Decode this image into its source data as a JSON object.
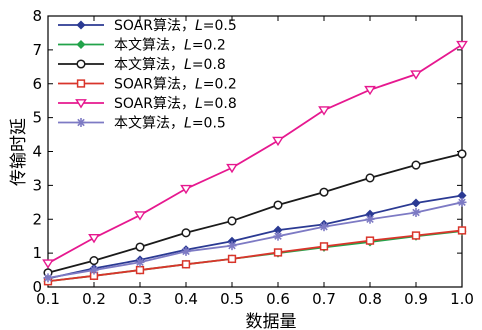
{
  "chart_data": {
    "type": "line",
    "xlabel": "数据量",
    "ylabel": "传输时延",
    "xlim": [
      0.1,
      1.0
    ],
    "ylim": [
      0,
      8
    ],
    "xticks": [
      "0.1",
      "0.2",
      "0.3",
      "0.4",
      "0.5",
      "0.6",
      "0.7",
      "0.8",
      "0.9",
      "1.0"
    ],
    "yticks": [
      "0",
      "1",
      "2",
      "3",
      "4",
      "5",
      "6",
      "7",
      "8"
    ],
    "legend_position": "top-left",
    "grid": false,
    "x": [
      0.1,
      0.2,
      0.3,
      0.4,
      0.5,
      0.6,
      0.7,
      0.8,
      0.9,
      1.0
    ],
    "series": [
      {
        "name": "SOAR算法，L=0.5",
        "label_main": "SOAR算法，",
        "label_var": "L",
        "label_val": "=0.5",
        "color": "#2b3a93",
        "marker": "diamond-filled",
        "values": [
          0.25,
          0.55,
          0.8,
          1.1,
          1.35,
          1.68,
          1.85,
          2.15,
          2.48,
          2.7
        ]
      },
      {
        "name": "本文算法，L=0.2",
        "label_main": "本文算法，",
        "label_var": "L",
        "label_val": "=0.2",
        "color": "#22a34a",
        "marker": "diamond-filled",
        "values": [
          0.17,
          0.33,
          0.5,
          0.67,
          0.83,
          1.0,
          1.17,
          1.33,
          1.5,
          1.65
        ]
      },
      {
        "name": "本文算法，L=0.8",
        "label_main": "本文算法，",
        "label_var": "L",
        "label_val": "=0.8",
        "color": "#1a1a1a",
        "marker": "circle-open",
        "values": [
          0.42,
          0.78,
          1.18,
          1.6,
          1.95,
          2.42,
          2.8,
          3.22,
          3.6,
          3.93
        ]
      },
      {
        "name": "SOAR算法，L=0.2",
        "label_main": "SOAR算法，",
        "label_var": "L",
        "label_val": "=0.2",
        "color": "#d9352b",
        "marker": "square-open",
        "values": [
          0.17,
          0.33,
          0.5,
          0.67,
          0.83,
          1.02,
          1.2,
          1.37,
          1.52,
          1.67
        ]
      },
      {
        "name": "SOAR算法，L=0.8",
        "label_main": "SOAR算法，",
        "label_var": "L",
        "label_val": "=0.8",
        "color": "#e6188f",
        "marker": "triangle-down-open",
        "values": [
          0.7,
          1.45,
          2.12,
          2.9,
          3.52,
          4.32,
          5.22,
          5.82,
          6.28,
          7.15
        ]
      },
      {
        "name": "本文算法，L=0.5",
        "label_main": "本文算法，",
        "label_var": "L",
        "label_val": "=0.5",
        "color": "#7d7ac4",
        "marker": "star",
        "values": [
          0.27,
          0.5,
          0.73,
          1.05,
          1.22,
          1.5,
          1.78,
          2.0,
          2.2,
          2.5
        ]
      }
    ]
  }
}
